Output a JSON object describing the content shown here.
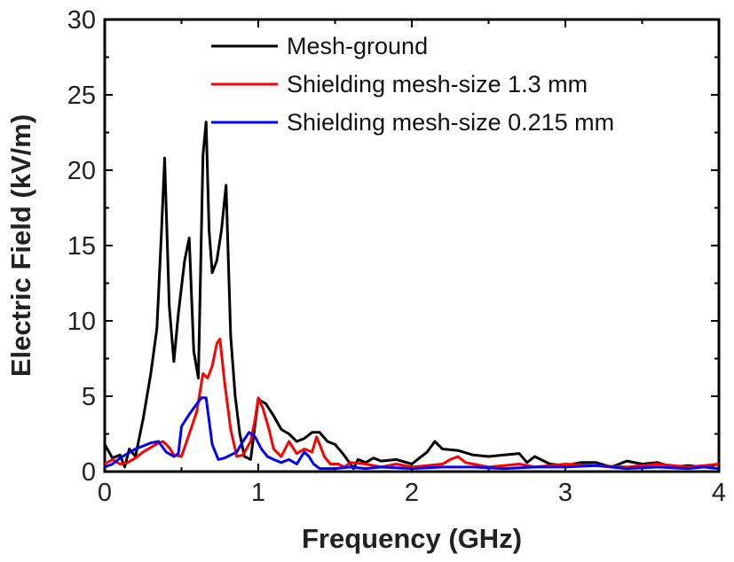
{
  "chart_data": {
    "type": "line",
    "title": "",
    "xlabel": "Frequency (GHz)",
    "ylabel": "Electric Field (kV/m)",
    "xlim": [
      0,
      4
    ],
    "ylim": [
      0,
      30
    ],
    "xticks": [
      "0",
      "1",
      "2",
      "3",
      "4"
    ],
    "yticks": [
      "0",
      "5",
      "10",
      "15",
      "20",
      "25",
      "30"
    ],
    "grid": false,
    "legend_position": "top-right",
    "series": [
      {
        "name": "Mesh-ground",
        "color": "#000000",
        "x": [
          0,
          0.05,
          0.1,
          0.13,
          0.16,
          0.2,
          0.25,
          0.3,
          0.34,
          0.37,
          0.39,
          0.42,
          0.45,
          0.48,
          0.52,
          0.55,
          0.58,
          0.61,
          0.64,
          0.66,
          0.68,
          0.7,
          0.73,
          0.76,
          0.79,
          0.82,
          0.85,
          0.88,
          0.91,
          0.95,
          1.0,
          1.05,
          1.1,
          1.15,
          1.2,
          1.25,
          1.3,
          1.35,
          1.4,
          1.45,
          1.5,
          1.55,
          1.6,
          1.62,
          1.65,
          1.7,
          1.75,
          1.8,
          1.9,
          2.0,
          2.05,
          2.1,
          2.15,
          2.2,
          2.3,
          2.4,
          2.5,
          2.6,
          2.7,
          2.75,
          2.8,
          2.9,
          3.0,
          3.1,
          3.2,
          3.3,
          3.4,
          3.5,
          3.6,
          3.7,
          3.8,
          3.9,
          4.0
        ],
        "y": [
          1.8,
          0.9,
          1.1,
          0.3,
          1.5,
          1.0,
          3.5,
          6.5,
          9.5,
          16.0,
          20.8,
          11.0,
          7.3,
          10.5,
          14.0,
          15.5,
          8.0,
          6.2,
          21.0,
          23.2,
          16.0,
          13.2,
          14.0,
          16.0,
          19.0,
          9.0,
          5.0,
          2.5,
          1.0,
          0.8,
          4.8,
          4.5,
          3.7,
          2.8,
          2.5,
          2.0,
          2.2,
          2.6,
          2.6,
          2.0,
          1.8,
          1.2,
          0.5,
          0.2,
          0.8,
          0.6,
          0.9,
          0.7,
          0.8,
          0.5,
          0.9,
          1.3,
          2.0,
          1.5,
          1.4,
          1.1,
          1.0,
          1.1,
          1.2,
          0.6,
          1.0,
          0.5,
          0.4,
          0.6,
          0.6,
          0.3,
          0.7,
          0.5,
          0.6,
          0.3,
          0.4,
          0.3,
          0.5
        ]
      },
      {
        "name": "Shielding mesh-size 1.3 mm",
        "color": "#ff0000",
        "x": [
          0,
          0.05,
          0.1,
          0.15,
          0.2,
          0.25,
          0.3,
          0.35,
          0.38,
          0.42,
          0.45,
          0.5,
          0.55,
          0.6,
          0.64,
          0.67,
          0.7,
          0.73,
          0.75,
          0.78,
          0.82,
          0.86,
          0.9,
          0.95,
          0.98,
          1.0,
          1.03,
          1.07,
          1.1,
          1.15,
          1.2,
          1.25,
          1.3,
          1.35,
          1.38,
          1.4,
          1.43,
          1.47,
          1.52,
          1.56,
          1.6,
          1.7,
          1.8,
          1.9,
          2.0,
          2.1,
          2.2,
          2.25,
          2.3,
          2.35,
          2.4,
          2.5,
          2.6,
          2.7,
          2.8,
          2.9,
          3.0,
          3.2,
          3.4,
          3.6,
          3.8,
          3.9,
          4.0
        ],
        "y": [
          0.5,
          0.8,
          0.5,
          0.6,
          0.9,
          1.3,
          1.6,
          1.9,
          2.0,
          1.6,
          1.1,
          1.0,
          2.5,
          4.0,
          6.5,
          6.2,
          7.0,
          8.5,
          8.8,
          6.0,
          2.8,
          1.0,
          1.1,
          2.0,
          3.5,
          4.9,
          4.2,
          2.8,
          1.5,
          1.0,
          2.0,
          1.2,
          1.5,
          1.3,
          2.3,
          1.8,
          1.0,
          0.5,
          0.5,
          0.3,
          0.6,
          0.5,
          0.3,
          0.5,
          0.3,
          0.4,
          0.5,
          0.8,
          1.0,
          0.6,
          0.5,
          0.3,
          0.4,
          0.5,
          0.3,
          0.4,
          0.5,
          0.4,
          0.3,
          0.5,
          0.3,
          0.4,
          0.5
        ]
      },
      {
        "name": "Shielding mesh-size 0.215 mm",
        "color": "#0000ff",
        "x": [
          0,
          0.05,
          0.1,
          0.15,
          0.2,
          0.25,
          0.3,
          0.35,
          0.4,
          0.45,
          0.48,
          0.5,
          0.55,
          0.6,
          0.63,
          0.66,
          0.7,
          0.74,
          0.78,
          0.82,
          0.86,
          0.9,
          0.94,
          0.98,
          1.02,
          1.06,
          1.1,
          1.15,
          1.2,
          1.25,
          1.3,
          1.33,
          1.36,
          1.4,
          1.45,
          1.5,
          1.6,
          1.7,
          1.8,
          2.0,
          2.2,
          2.4,
          2.6,
          2.8,
          3.0,
          3.2,
          3.4,
          3.6,
          3.8,
          3.9,
          4.0
        ],
        "y": [
          0.3,
          0.5,
          0.9,
          1.2,
          1.5,
          1.7,
          1.9,
          2.0,
          1.3,
          1.0,
          1.2,
          3.0,
          3.8,
          4.5,
          4.9,
          4.9,
          1.8,
          0.8,
          0.9,
          1.1,
          1.3,
          2.0,
          2.6,
          2.3,
          1.5,
          1.0,
          0.8,
          0.6,
          0.8,
          0.5,
          1.3,
          1.0,
          0.5,
          0.2,
          0.2,
          0.2,
          0.3,
          0.2,
          0.3,
          0.2,
          0.3,
          0.3,
          0.2,
          0.3,
          0.3,
          0.4,
          0.2,
          0.3,
          0.2,
          0.3,
          0.2
        ]
      }
    ]
  }
}
